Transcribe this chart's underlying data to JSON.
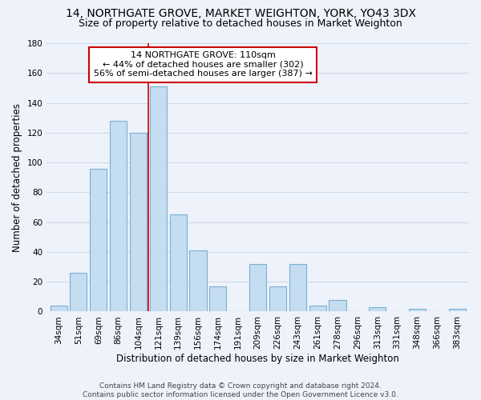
{
  "title": "14, NORTHGATE GROVE, MARKET WEIGHTON, YORK, YO43 3DX",
  "subtitle": "Size of property relative to detached houses in Market Weighton",
  "xlabel": "Distribution of detached houses by size in Market Weighton",
  "ylabel": "Number of detached properties",
  "categories": [
    "34sqm",
    "51sqm",
    "69sqm",
    "86sqm",
    "104sqm",
    "121sqm",
    "139sqm",
    "156sqm",
    "174sqm",
    "191sqm",
    "209sqm",
    "226sqm",
    "243sqm",
    "261sqm",
    "278sqm",
    "296sqm",
    "313sqm",
    "331sqm",
    "348sqm",
    "366sqm",
    "383sqm"
  ],
  "values": [
    4,
    26,
    96,
    128,
    120,
    151,
    65,
    41,
    17,
    0,
    32,
    17,
    32,
    4,
    8,
    0,
    3,
    0,
    2,
    0,
    2
  ],
  "bar_color": "#c5ddf0",
  "bar_edge_color": "#7ab0d4",
  "vline_x": 4.5,
  "vline_color": "#cc0000",
  "annotation_title": "14 NORTHGATE GROVE: 110sqm",
  "annotation_line1": "← 44% of detached houses are smaller (302)",
  "annotation_line2": "56% of semi-detached houses are larger (387) →",
  "annotation_box_color": "#ffffff",
  "annotation_box_edgecolor": "#cc0000",
  "ylim": [
    0,
    180
  ],
  "yticks": [
    0,
    20,
    40,
    60,
    80,
    100,
    120,
    140,
    160,
    180
  ],
  "footer_line1": "Contains HM Land Registry data © Crown copyright and database right 2024.",
  "footer_line2": "Contains public sector information licensed under the Open Government Licence v3.0.",
  "background_color": "#eef2fb",
  "grid_color": "#d0d8e8",
  "title_fontsize": 10,
  "subtitle_fontsize": 9,
  "axis_label_fontsize": 8.5,
  "tick_fontsize": 7.5,
  "footer_fontsize": 6.5
}
